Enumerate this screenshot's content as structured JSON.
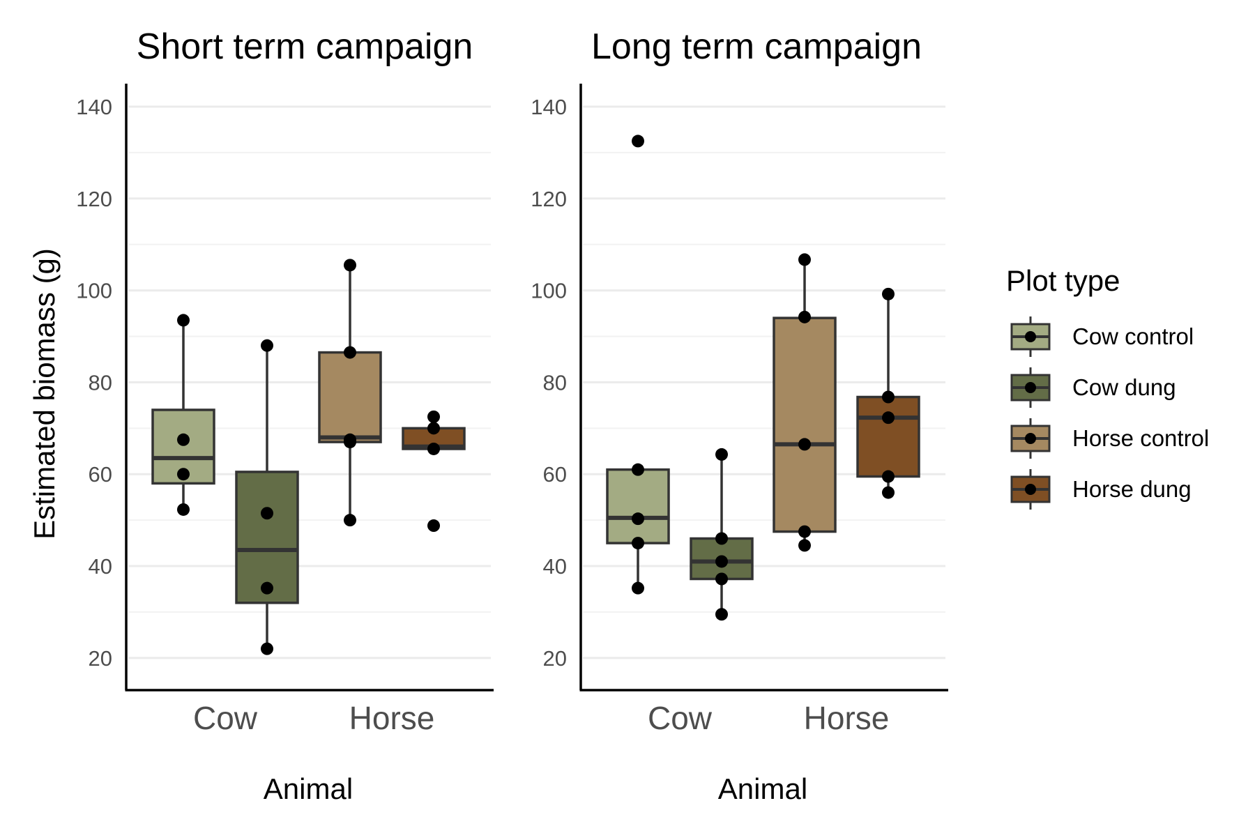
{
  "chart_data": {
    "type": "box",
    "ylabel": "Estimated biomass (g)",
    "ylim": [
      13,
      145
    ],
    "y_ticks": [
      20,
      40,
      60,
      80,
      100,
      120,
      140
    ],
    "grid": true,
    "legend": {
      "title": "Plot type",
      "position": "right",
      "entries": [
        {
          "name": "Cow control",
          "color": "#a3ab83"
        },
        {
          "name": "Cow dung",
          "color": "#636d47"
        },
        {
          "name": "Horse control",
          "color": "#a58961"
        },
        {
          "name": "Horse dung",
          "color": "#7f4f24"
        }
      ]
    },
    "panels": [
      {
        "title": "Short term campaign",
        "xlabel": "Animal",
        "categories": [
          "Cow",
          "Horse"
        ],
        "boxes": [
          {
            "series": "Cow control",
            "category": "Cow",
            "q1": 58,
            "median": 63.5,
            "q3": 74,
            "whisker_low": 52.3,
            "whisker_high": 93.5,
            "points": [
              93.5,
              67.5,
              60,
              52.3
            ]
          },
          {
            "series": "Cow dung",
            "category": "Cow",
            "q1": 32,
            "median": 43.5,
            "q3": 60.5,
            "whisker_low": 22,
            "whisker_high": 88,
            "points": [
              88,
              51.5,
              35.2,
              22
            ]
          },
          {
            "series": "Horse control",
            "category": "Horse",
            "q1": 67,
            "median": 68,
            "q3": 86.5,
            "whisker_low": 50,
            "whisker_high": 105.5,
            "points": [
              105.5,
              86.5,
              67.5,
              67,
              50
            ]
          },
          {
            "series": "Horse dung",
            "category": "Horse",
            "q1": 65.5,
            "median": 66,
            "q3": 70,
            "whisker_low": 65.5,
            "whisker_high": 72.5,
            "points": [
              72.5,
              70,
              65.5,
              48.8
            ]
          }
        ]
      },
      {
        "title": "Long term campaign",
        "xlabel": "Animal",
        "categories": [
          "Cow",
          "Horse"
        ],
        "boxes": [
          {
            "series": "Cow control",
            "category": "Cow",
            "q1": 45,
            "median": 50.5,
            "q3": 61,
            "whisker_low": 35.2,
            "whisker_high": 61,
            "points": [
              132.5,
              61,
              50.3,
              45,
              35.2
            ]
          },
          {
            "series": "Cow dung",
            "category": "Cow",
            "q1": 37.2,
            "median": 41,
            "q3": 46,
            "whisker_low": 29.5,
            "whisker_high": 64.3,
            "points": [
              64.3,
              46,
              41,
              37.2,
              29.5
            ]
          },
          {
            "series": "Horse control",
            "category": "Horse",
            "q1": 47.5,
            "median": 66.5,
            "q3": 94,
            "whisker_low": 44.5,
            "whisker_high": 106.7,
            "points": [
              106.7,
              94.2,
              66.5,
              47.5,
              44.5
            ]
          },
          {
            "series": "Horse dung",
            "category": "Horse",
            "q1": 59.5,
            "median": 72.3,
            "q3": 76.8,
            "whisker_low": 56,
            "whisker_high": 99.2,
            "points": [
              99.2,
              76.8,
              72.3,
              59.5,
              56
            ]
          }
        ]
      }
    ]
  }
}
